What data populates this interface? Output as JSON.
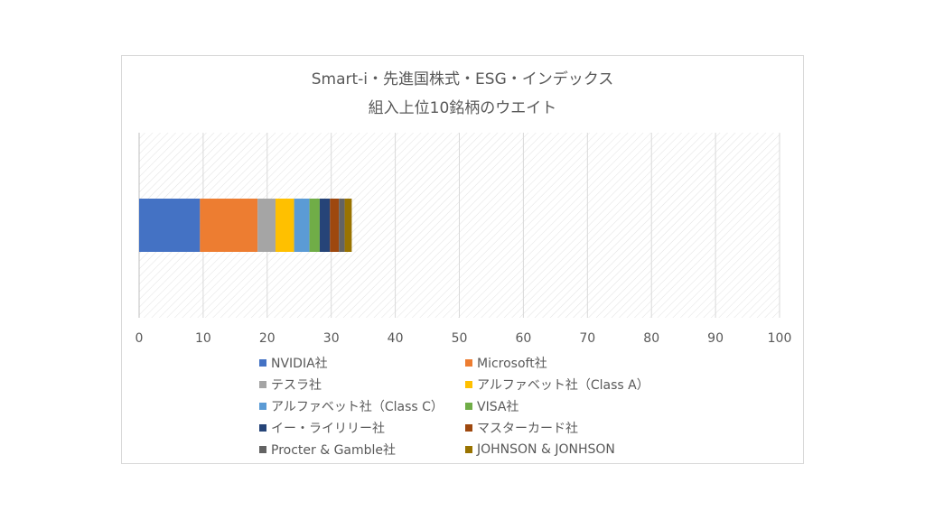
{
  "chart_data": {
    "type": "bar",
    "orientation": "horizontal",
    "stacked": true,
    "title_line1": "Smart-i・先進国株式・ESG・インデックス",
    "title_line2": "組入上位10銘柄のウエイト",
    "xlim": [
      0,
      100
    ],
    "x_ticks": [
      "0",
      "10",
      "20",
      "30",
      "40",
      "50",
      "60",
      "70",
      "80",
      "90",
      "100"
    ],
    "grid": "vertical",
    "legend_position": "bottom",
    "series": [
      {
        "name": "NVIDIA社",
        "value": 9.5,
        "color": "#4472c4"
      },
      {
        "name": "Microsoft社",
        "value": 9.0,
        "color": "#ed7d31"
      },
      {
        "name": "テスラ社",
        "value": 2.8,
        "color": "#a5a5a5"
      },
      {
        "name": "アルファベット社（Class A）",
        "value": 2.9,
        "color": "#ffc000"
      },
      {
        "name": "アルファベット社（Class C）",
        "value": 2.4,
        "color": "#5b9bd5"
      },
      {
        "name": "VISA社",
        "value": 1.6,
        "color": "#70ad47"
      },
      {
        "name": "イー・ライリリー社",
        "value": 1.6,
        "color": "#264478"
      },
      {
        "name": "マスターカード社",
        "value": 1.4,
        "color": "#9e480e"
      },
      {
        "name": "Procter & Gamble社",
        "value": 0.9,
        "color": "#636363"
      },
      {
        "name": "JOHNSON & JONHSON",
        "value": 1.1,
        "color": "#997300"
      }
    ]
  }
}
